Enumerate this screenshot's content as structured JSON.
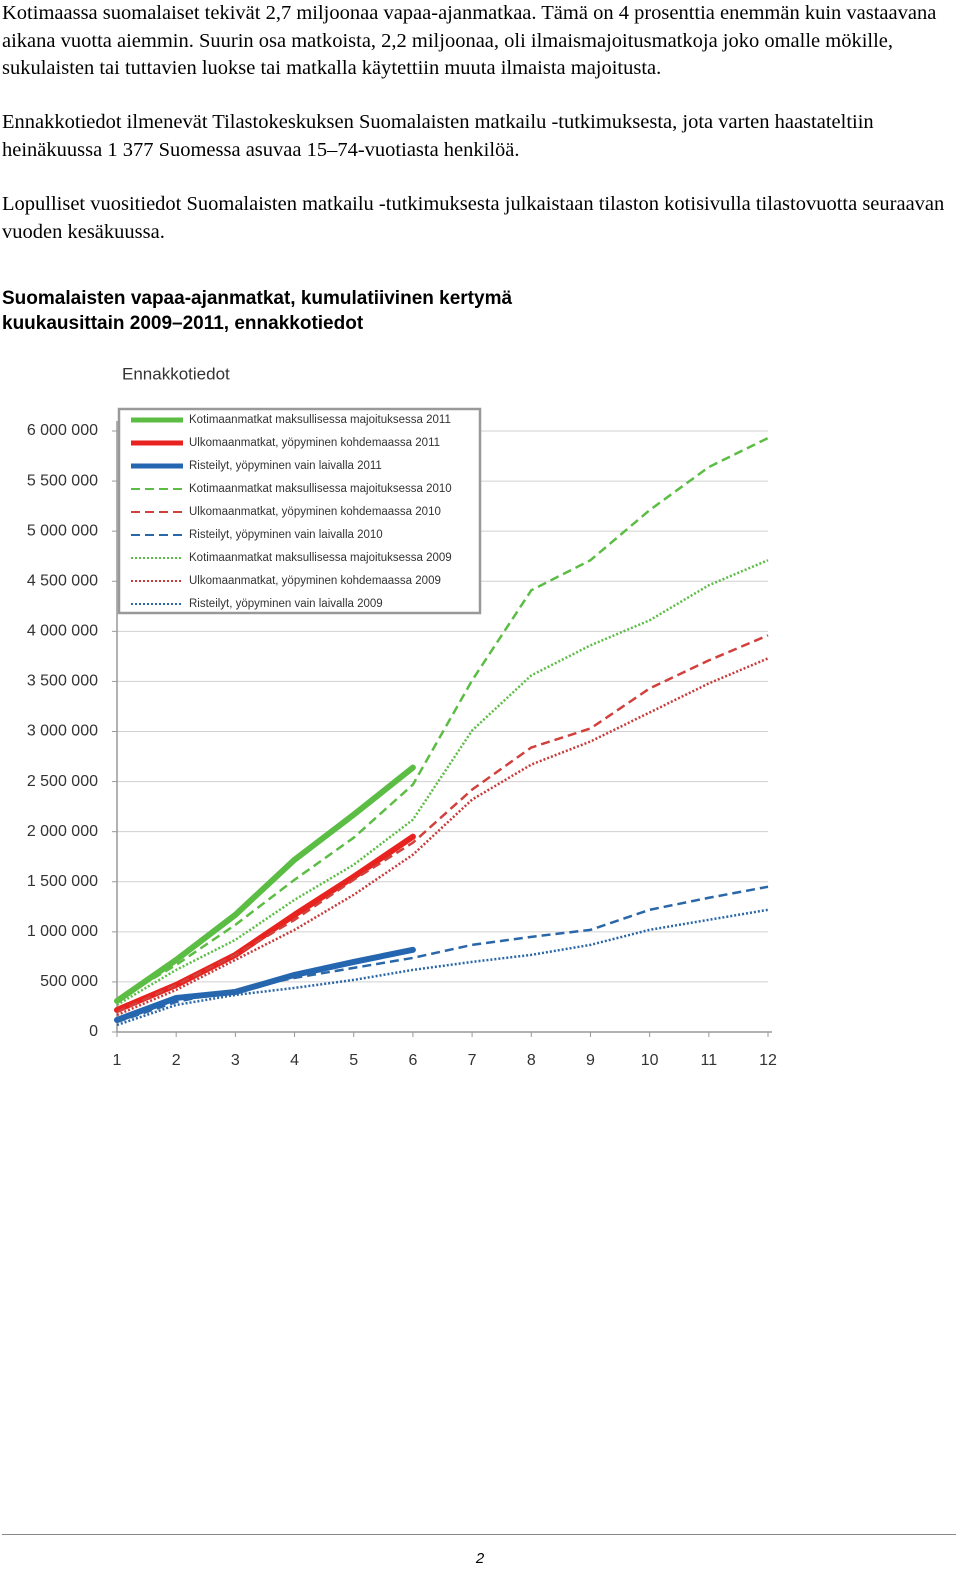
{
  "paragraphs": [
    "Kotimaassa suomalaiset tekivät 2,7 miljoonaa vapaa-ajanmatkaa. Tämä on 4 prosenttia enemmän kuin vastaavana aikana vuotta aiemmin. Suurin osa matkoista, 2,2 miljoonaa, oli ilmaismajoitusmatkoja joko omalle mökille, sukulaisten tai tuttavien luokse tai matkalla käytettiin muuta ilmaista majoitusta.",
    "Ennakkotiedot ilmenevät Tilastokeskuksen Suomalaisten matkailu -tutkimuksesta, jota varten haastateltiin heinäkuussa 1 377 Suomessa asuvaa 15–74-vuotiasta henkilöä.",
    "Lopulliset vuositiedot Suomalaisten matkailu -tutkimuksesta julkaistaan tilaston kotisivulla tilastovuotta seuraavan vuoden kesäkuussa."
  ],
  "chart_heading": [
    "Suomalaisten vapaa-ajanmatkat, kumulatiivinen kertymä",
    "kuukausittain 2009–2011, ennakkotiedot"
  ],
  "chart_data": {
    "type": "line",
    "title": "Ennakkotiedot",
    "x": [
      1,
      2,
      3,
      4,
      5,
      6,
      7,
      8,
      9,
      10,
      11,
      12
    ],
    "xlim": [
      1,
      12
    ],
    "xticks": [
      1,
      2,
      3,
      4,
      5,
      6,
      7,
      8,
      9,
      10,
      11,
      12
    ],
    "ylim": [
      0,
      6000000
    ],
    "yticks": [
      0,
      {
        "value": 500000,
        "label": "500 000"
      },
      {
        "value": 1000000,
        "label": "1 000 000"
      },
      {
        "value": 1500000,
        "label": "1 500 000"
      },
      {
        "value": 2000000,
        "label": "2 000 000"
      },
      {
        "value": 2500000,
        "label": "2 500 000"
      },
      {
        "value": 3000000,
        "label": "3 000 000"
      },
      {
        "value": 3500000,
        "label": "3 500 000"
      },
      {
        "value": 4000000,
        "label": "4 000 000"
      },
      {
        "value": 4500000,
        "label": "4 500 000"
      },
      {
        "value": 5000000,
        "label": "5 000 000"
      },
      {
        "value": 5500000,
        "label": "5 500 000"
      },
      {
        "value": 6000000,
        "label": "6 000 000"
      }
    ],
    "grid": true,
    "legend": "upper left",
    "series": [
      {
        "name": "Kotimaanmatkat maksullisessa majoituksessa 2011",
        "color": "#5cbd45",
        "style": "solid",
        "values": [
          310000,
          720000,
          1170000,
          1720000,
          2170000,
          2640000,
          null,
          null,
          null,
          null,
          null,
          null
        ]
      },
      {
        "name": "Ulkomaanmatkat, yöpyminen kohdemaassa 2011",
        "color": "#e8231f",
        "style": "solid",
        "values": [
          220000,
          470000,
          770000,
          1170000,
          1550000,
          1950000,
          null,
          null,
          null,
          null,
          null,
          null
        ]
      },
      {
        "name": "Risteilyt, yöpyminen vain laivalla 2011",
        "color": "#2566b0",
        "style": "solid",
        "values": [
          120000,
          340000,
          400000,
          570000,
          700000,
          820000,
          null,
          null,
          null,
          null,
          null,
          null
        ]
      },
      {
        "name": "Kotimaanmatkat maksullisessa majoituksessa 2010",
        "color": "#5cbd45",
        "style": "dashed",
        "values": [
          320000,
          670000,
          1070000,
          1520000,
          1940000,
          2470000,
          3510000,
          4410000,
          4710000,
          5210000,
          5640000,
          5930000
        ]
      },
      {
        "name": "Ulkomaanmatkat, yöpyminen kohdemaassa 2010",
        "color": "#d2403c",
        "style": "dashed",
        "values": [
          200000,
          470000,
          770000,
          1120000,
          1520000,
          1890000,
          2420000,
          2840000,
          3030000,
          3430000,
          3710000,
          3960000
        ]
      },
      {
        "name": "Risteilyt, yöpyminen vain laivalla 2010",
        "color": "#2a67a8",
        "style": "dashed",
        "values": [
          100000,
          300000,
          420000,
          540000,
          640000,
          740000,
          870000,
          950000,
          1020000,
          1220000,
          1340000,
          1450000
        ]
      },
      {
        "name": "Kotimaanmatkat maksullisessa majoituksessa 2009",
        "color": "#5cbd45",
        "style": "dotted",
        "values": [
          270000,
          620000,
          920000,
          1320000,
          1670000,
          2120000,
          3010000,
          3560000,
          3860000,
          4110000,
          4460000,
          4710000
        ]
      },
      {
        "name": "Ulkomaanmatkat, yöpyminen kohdemaassa 2009",
        "color": "#c83a3a",
        "style": "dotted",
        "values": [
          170000,
          420000,
          720000,
          1020000,
          1370000,
          1770000,
          2320000,
          2670000,
          2900000,
          3190000,
          3480000,
          3730000
        ]
      },
      {
        "name": "Risteilyt, yöpyminen vain laivalla 2009",
        "color": "#2a67a8",
        "style": "dotted",
        "values": [
          70000,
          270000,
          370000,
          440000,
          520000,
          620000,
          700000,
          770000,
          870000,
          1020000,
          1120000,
          1220000
        ]
      }
    ]
  },
  "page_number": "2"
}
